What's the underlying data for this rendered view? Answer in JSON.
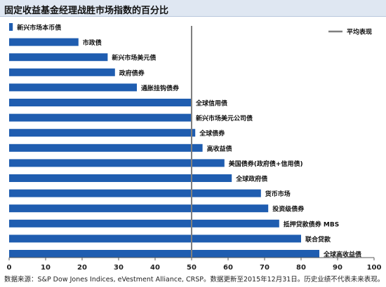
{
  "title": "固定收益基金经理战胜市场指数的百分比",
  "source": "数据来源：S&P Dow Jones Indices, eVestment Alliance, CRSP。数据更新至2015年12月31日。历史业绩不代表未来表现。",
  "colors": {
    "bar": "#1f5db0",
    "avg_line": "#7f7f7f",
    "axis": "#595959",
    "title_bg": "#dfe7f2"
  },
  "chart_data": {
    "type": "bar",
    "orientation": "horizontal",
    "xlim": [
      0,
      100
    ],
    "xticks": [
      0,
      10,
      20,
      30,
      40,
      50,
      60,
      70,
      80,
      90,
      100
    ],
    "reference_line": {
      "value": 50,
      "label": "平均表现"
    },
    "legend_position": "top-right",
    "categories": [
      "新兴市场本币债",
      "市政债",
      "新兴市场美元债",
      "政府债券",
      "通胀挂钩债券",
      "全球信用债",
      "新兴市场美元公司债",
      "全球债券",
      "高收益债",
      "美国债券(政府债+信用债)",
      "全球政府债",
      "货币市场",
      "投资级债券",
      "抵押贷款债券 MBS",
      "联合贷款",
      "全球高收益债"
    ],
    "values": [
      1,
      19,
      27,
      29,
      35,
      50,
      50,
      51,
      53,
      59,
      61,
      69,
      71,
      74,
      80,
      85
    ]
  }
}
